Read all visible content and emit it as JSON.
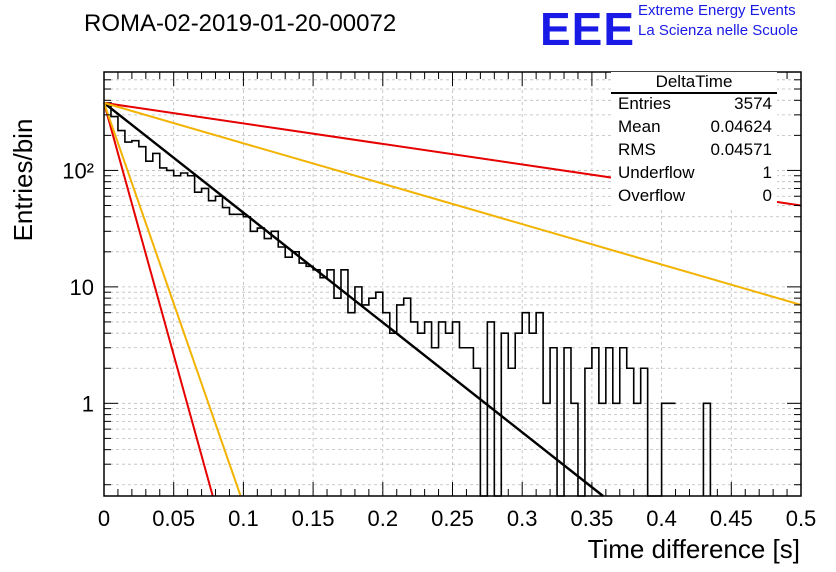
{
  "title": "ROMA-02-2019-01-20-00072",
  "logo": {
    "text": "EEE",
    "line1": "Extreme Energy Events",
    "line2": "La Scienza nelle Scuole",
    "color": "#1a1ae6"
  },
  "stats": {
    "name": "DeltaTime",
    "rows": [
      {
        "label": "Entries",
        "value": "3574"
      },
      {
        "label": "Mean",
        "value": "0.04624"
      },
      {
        "label": "RMS",
        "value": "0.04571"
      },
      {
        "label": "Underflow",
        "value": "1"
      },
      {
        "label": "Overflow",
        "value": "0"
      }
    ]
  },
  "chart_data": {
    "type": "histogram",
    "xlabel": "Time difference [s]",
    "ylabel": "Entries/bin",
    "xlim": [
      0,
      0.5
    ],
    "ylim": [
      0.16,
      700
    ],
    "log_y": true,
    "grid": true,
    "bin_width": 0.005,
    "x_ticks": [
      0,
      0.05,
      0.1,
      0.15,
      0.2,
      0.25,
      0.3,
      0.35,
      0.4,
      0.45,
      0.5
    ],
    "x_tick_labels": [
      "0",
      "0.05",
      "0.1",
      "0.15",
      "0.2",
      "0.25",
      "0.3",
      "0.35",
      "0.4",
      "0.45",
      "0.5"
    ],
    "y_ticks": [
      1,
      10,
      100
    ],
    "y_tick_labels": [
      "1",
      "10",
      "10²"
    ],
    "histogram_values": [
      380,
      290,
      220,
      175,
      180,
      160,
      120,
      140,
      105,
      100,
      90,
      95,
      90,
      65,
      70,
      55,
      60,
      48,
      42,
      42,
      40,
      30,
      32,
      26,
      30,
      22,
      18,
      20,
      16,
      15,
      14,
      12,
      14,
      8,
      14,
      6,
      10,
      7,
      8,
      9,
      6,
      4,
      7,
      8,
      5,
      4,
      5,
      3,
      5,
      4,
      5,
      3,
      3,
      2,
      0,
      5,
      0,
      4,
      2,
      4,
      6,
      4,
      6,
      1,
      3,
      0,
      3,
      1,
      0,
      2,
      3,
      1,
      3,
      1,
      3,
      2,
      1,
      2,
      0,
      0,
      1,
      1,
      0,
      0,
      0,
      0,
      0,
      0,
      0,
      0,
      0,
      0,
      0,
      0,
      0,
      0,
      0,
      0,
      0,
      0,
      0,
      0,
      0,
      0,
      0,
      0,
      0,
      0,
      0,
      0,
      0,
      0,
      0,
      0,
      0,
      0,
      0,
      0,
      0,
      0,
      0,
      0,
      0,
      0,
      0,
      0,
      0,
      0,
      0,
      0,
      0,
      0,
      0,
      0,
      0,
      0,
      0,
      0,
      0,
      0,
      0,
      0,
      0,
      0,
      0,
      0,
      0,
      0,
      0,
      0,
      0,
      0,
      0,
      0,
      0,
      0,
      0,
      0,
      0,
      0,
      0,
      0,
      0,
      0,
      0,
      0,
      0,
      0,
      0,
      0,
      0,
      0,
      0,
      0,
      0,
      0,
      0,
      0,
      0,
      0,
      0,
      0,
      0,
      0,
      0,
      0,
      0,
      0,
      0,
      0,
      0,
      0,
      0,
      0,
      0,
      0,
      0,
      0,
      0,
      0,
      0,
      0,
      0,
      0,
      0,
      0,
      0,
      0,
      0,
      0,
      0,
      0,
      0,
      0,
      0,
      0,
      0,
      0,
      0,
      0,
      0,
      0,
      0,
      0,
      0,
      0,
      0,
      0,
      0,
      0,
      0,
      0,
      0,
      0,
      0,
      0,
      0,
      0,
      0,
      0,
      0,
      0,
      0,
      0,
      0,
      0,
      0,
      0,
      0,
      0,
      0,
      0,
      0,
      0,
      0,
      0,
      0,
      0,
      0,
      0,
      0,
      0,
      0,
      0,
      0,
      0,
      0,
      0,
      0,
      0,
      0,
      0,
      0,
      0,
      0,
      0,
      0,
      0,
      0,
      0,
      0,
      0,
      0,
      0,
      0,
      0,
      0,
      0,
      0,
      0,
      0,
      0,
      0,
      0,
      0,
      0,
      0,
      0,
      0,
      0,
      0,
      0,
      0,
      0,
      0,
      0,
      0,
      0,
      0,
      0,
      0,
      0,
      0,
      0,
      0,
      0,
      0,
      0,
      0,
      0,
      0,
      0,
      0,
      0,
      0,
      0,
      0,
      0,
      0,
      0,
      0,
      0,
      0,
      0,
      0,
      0,
      0,
      0,
      0,
      0,
      0,
      0,
      0,
      0,
      0,
      0,
      0,
      0,
      0,
      0,
      0,
      0,
      0,
      0,
      0,
      0,
      0,
      0,
      0,
      0,
      0,
      0,
      0,
      0,
      0,
      0,
      0,
      0,
      0,
      0,
      0,
      0,
      0,
      0,
      0,
      0,
      0,
      0,
      0,
      0,
      0,
      0,
      0,
      0,
      0,
      0,
      0,
      0,
      0,
      0,
      0,
      0,
      0,
      0,
      0,
      0,
      0,
      0,
      0,
      0,
      0,
      0,
      0,
      0,
      0,
      0,
      0,
      0,
      0,
      0,
      0,
      0,
      0,
      0,
      0,
      0,
      0,
      0,
      0,
      0,
      0,
      0,
      0,
      0,
      0,
      0,
      0,
      0,
      0,
      0,
      0,
      0,
      0,
      0,
      0,
      0,
      0,
      0,
      0,
      0,
      0,
      0,
      0,
      0,
      0,
      0,
      0,
      0,
      0,
      0,
      0,
      0,
      0,
      0,
      0,
      0,
      0,
      0,
      0,
      0,
      0,
      0,
      0,
      0,
      0,
      0,
      0,
      0,
      0,
      0,
      0,
      0,
      0,
      0,
      0,
      0,
      0,
      0,
      0,
      0,
      0,
      0,
      0,
      0,
      0,
      0,
      0,
      0,
      0,
      0,
      0,
      0,
      0,
      0,
      0,
      0,
      0,
      0,
      0,
      0,
      0,
      0,
      0,
      0,
      0,
      0,
      0,
      0,
      0,
      0,
      0,
      0,
      0,
      0,
      0,
      0,
      0,
      0,
      0,
      0,
      0,
      0,
      0,
      0,
      0,
      0,
      0,
      0,
      0,
      0,
      0,
      0,
      0,
      0,
      0,
      0,
      0,
      0,
      0,
      0,
      0,
      0,
      0,
      0
    ],
    "extra_bins": [
      {
        "x": 0.43,
        "value": 1
      }
    ],
    "fit_lines": [
      {
        "color": "#000000",
        "x": [
          0,
          0.358
        ],
        "y": [
          380,
          0.16
        ]
      },
      {
        "color": "#e60000",
        "x": [
          0,
          0.5
        ],
        "y": [
          380,
          50
        ]
      },
      {
        "color": "#e60000",
        "x": [
          0,
          0.078
        ],
        "y": [
          380,
          0.16
        ]
      },
      {
        "color": "#f2b300",
        "x": [
          0,
          0.5
        ],
        "y": [
          380,
          7
        ]
      },
      {
        "color": "#f2b300",
        "x": [
          0,
          0.098
        ],
        "y": [
          380,
          0.16
        ]
      }
    ]
  }
}
